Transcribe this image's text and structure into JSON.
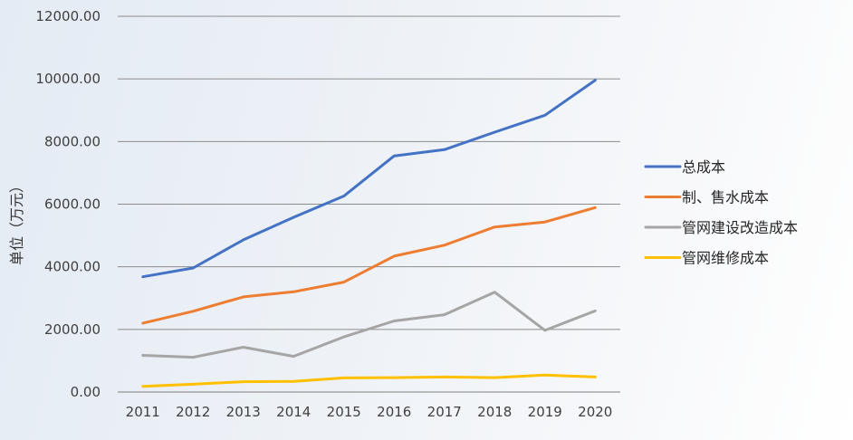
{
  "chart_data": {
    "type": "line",
    "title": "",
    "xlabel": "",
    "ylabel": "单位（万元）",
    "categories": [
      "2011",
      "2012",
      "2013",
      "2014",
      "2015",
      "2016",
      "2017",
      "2018",
      "2019",
      "2020"
    ],
    "ylim": [
      0,
      12000
    ],
    "yticks": [
      0,
      2000,
      4000,
      6000,
      8000,
      10000,
      12000
    ],
    "ytick_labels": [
      "0.00",
      "2000.00",
      "4000.00",
      "6000.00",
      "8000.00",
      "10000.00",
      "12000.00"
    ],
    "grid": true,
    "legend_position": "right",
    "series": [
      {
        "name": "总成本",
        "color": "#4472C4",
        "values": [
          3680,
          3960,
          4860,
          5580,
          6260,
          7540,
          7740,
          8300,
          8840,
          9960
        ]
      },
      {
        "name": "制、售水成本",
        "color": "#ED7D31",
        "values": [
          2200,
          2580,
          3040,
          3200,
          3510,
          4340,
          4690,
          5270,
          5430,
          5890
        ]
      },
      {
        "name": "管网建设改造成本",
        "color": "#A5A5A5",
        "values": [
          1170,
          1110,
          1430,
          1140,
          1760,
          2270,
          2470,
          3190,
          1970,
          2590
        ]
      },
      {
        "name": "管网维修成本",
        "color": "#FFC000",
        "values": [
          180,
          250,
          330,
          340,
          450,
          460,
          480,
          460,
          540,
          480
        ]
      }
    ]
  }
}
